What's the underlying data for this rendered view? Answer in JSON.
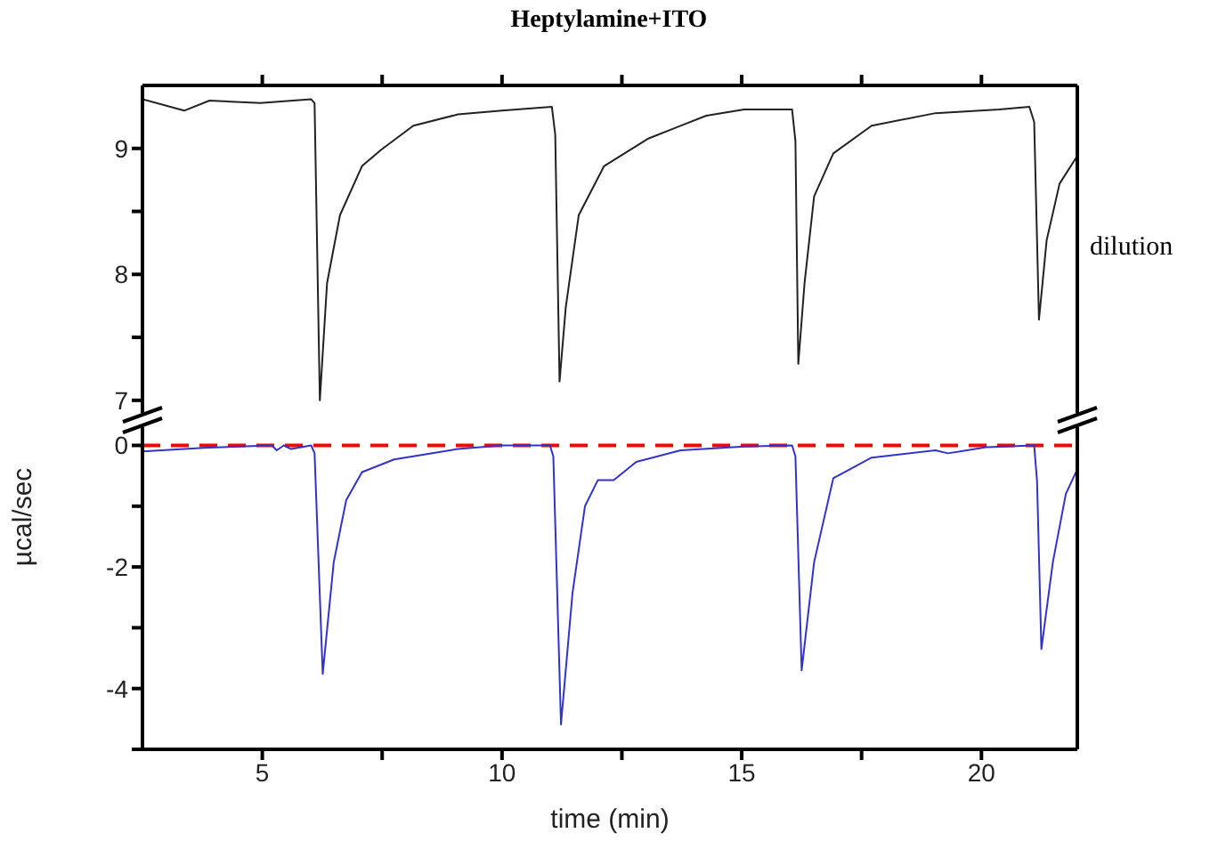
{
  "chart_data": [
    {
      "type": "line",
      "title": "Heptylamine+ITO",
      "annotations": [
        "dilution"
      ],
      "tick_labels": "y",
      "marker": "none",
      "xlim": [
        2.5,
        22
      ],
      "xticks": [
        {
          "value": 5,
          "label": null
        },
        {
          "value": 7.5,
          "label": null
        },
        {
          "value": 10,
          "label": null
        },
        {
          "value": 12.5,
          "label": null
        },
        {
          "value": 15,
          "label": null
        },
        {
          "value": 17.5,
          "label": null
        },
        {
          "value": 20,
          "label": null
        }
      ],
      "ylim": [
        6.9,
        9.5
      ],
      "yticks": [
        7,
        {
          "value": 7.5,
          "label": null
        },
        8,
        {
          "value": 8.5,
          "label": null
        },
        9
      ],
      "x": [
        2.5,
        3.37,
        3.9,
        4.96,
        6.02,
        6.09,
        6.2,
        6.35,
        6.62,
        7.08,
        7.48,
        8.15,
        9.08,
        10.0,
        11.04,
        11.11,
        11.2,
        11.33,
        11.6,
        12.13,
        13.06,
        14.26,
        15.05,
        16.05,
        16.12,
        16.18,
        16.31,
        16.51,
        16.91,
        17.71,
        19.04,
        20.37,
        21.0,
        21.1,
        21.2,
        21.36,
        21.63,
        22.0
      ],
      "series": [
        {
          "color": "#222222",
          "line_style": "solid",
          "values": [
            9.39,
            9.3,
            9.38,
            9.36,
            9.39,
            9.36,
            7.0,
            7.93,
            8.47,
            8.86,
            8.99,
            9.18,
            9.27,
            9.3,
            9.33,
            9.11,
            7.15,
            7.74,
            8.47,
            8.86,
            9.08,
            9.26,
            9.31,
            9.31,
            9.06,
            7.29,
            7.93,
            8.62,
            8.96,
            9.18,
            9.28,
            9.31,
            9.33,
            9.21,
            7.64,
            8.27,
            8.72,
            8.94
          ]
        }
      ]
    },
    {
      "type": "line",
      "xlabel": "time (min)",
      "ylabel": "µcal/sec",
      "marker": "none",
      "xlim": [
        2.5,
        22
      ],
      "xticks": [
        5,
        {
          "value": 7.5,
          "label": null
        },
        10,
        {
          "value": 12.5,
          "label": null
        },
        15,
        {
          "value": 17.5,
          "label": null
        },
        20
      ],
      "ylim": [
        -5,
        0.3
      ],
      "yticks": [
        {
          "value": -5,
          "label": null
        },
        -4,
        {
          "value": -3,
          "label": null
        },
        -2,
        {
          "value": -1,
          "label": null
        },
        0
      ],
      "x": [
        2.5,
        3.77,
        5.2,
        5.3,
        5.45,
        5.6,
        6.02,
        6.09,
        6.26,
        6.49,
        6.75,
        7.08,
        7.75,
        9.08,
        10.0,
        11.0,
        11.07,
        11.23,
        11.47,
        11.73,
        12.0,
        12.33,
        12.8,
        13.73,
        15.05,
        16.05,
        16.12,
        16.25,
        16.51,
        16.91,
        17.71,
        19.04,
        19.3,
        20.1,
        21.1,
        21.16,
        21.25,
        21.49,
        21.76,
        22.0
      ],
      "series": [
        {
          "color": "#3333cc",
          "line_style": "solid",
          "values": [
            -0.1,
            -0.04,
            0,
            -0.08,
            0,
            -0.06,
            0,
            -0.13,
            -3.76,
            -1.92,
            -0.9,
            -0.44,
            -0.23,
            -0.06,
            0,
            0,
            -0.18,
            -4.59,
            -2.43,
            -1.0,
            -0.57,
            -0.57,
            -0.27,
            -0.08,
            -0.02,
            0,
            -0.18,
            -3.7,
            -1.92,
            -0.54,
            -0.2,
            -0.08,
            -0.13,
            -0.03,
            0,
            -0.59,
            -3.35,
            -1.92,
            -0.8,
            -0.39
          ]
        }
      ],
      "ref_lines": [
        {
          "axis": "y",
          "value": 0,
          "color": "#ff0000",
          "line_style": "dashed"
        }
      ]
    }
  ]
}
